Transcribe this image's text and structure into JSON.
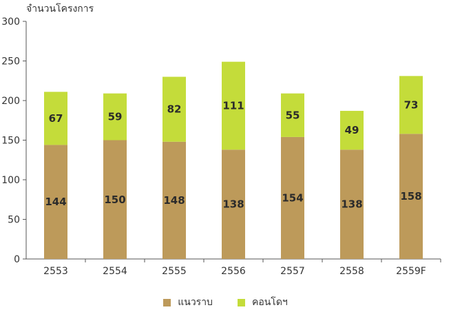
{
  "chart_data": {
    "type": "bar",
    "stacked": true,
    "ylabel": "จำนวนโครงการ",
    "ylim": [
      0,
      300
    ],
    "yticks": [
      0,
      50,
      100,
      150,
      200,
      250,
      300
    ],
    "categories": [
      "2553",
      "2554",
      "2555",
      "2556",
      "2557",
      "2558",
      "2559F"
    ],
    "series": [
      {
        "name": "แนวราบ",
        "color": "#bd9a5a",
        "values": [
          144,
          150,
          148,
          138,
          154,
          138,
          158
        ]
      },
      {
        "name": "คอนโดฯ",
        "color": "#c4dc3a",
        "values": [
          67,
          59,
          82,
          111,
          55,
          49,
          73
        ]
      }
    ],
    "grid": false,
    "legend": "bottom-center"
  }
}
